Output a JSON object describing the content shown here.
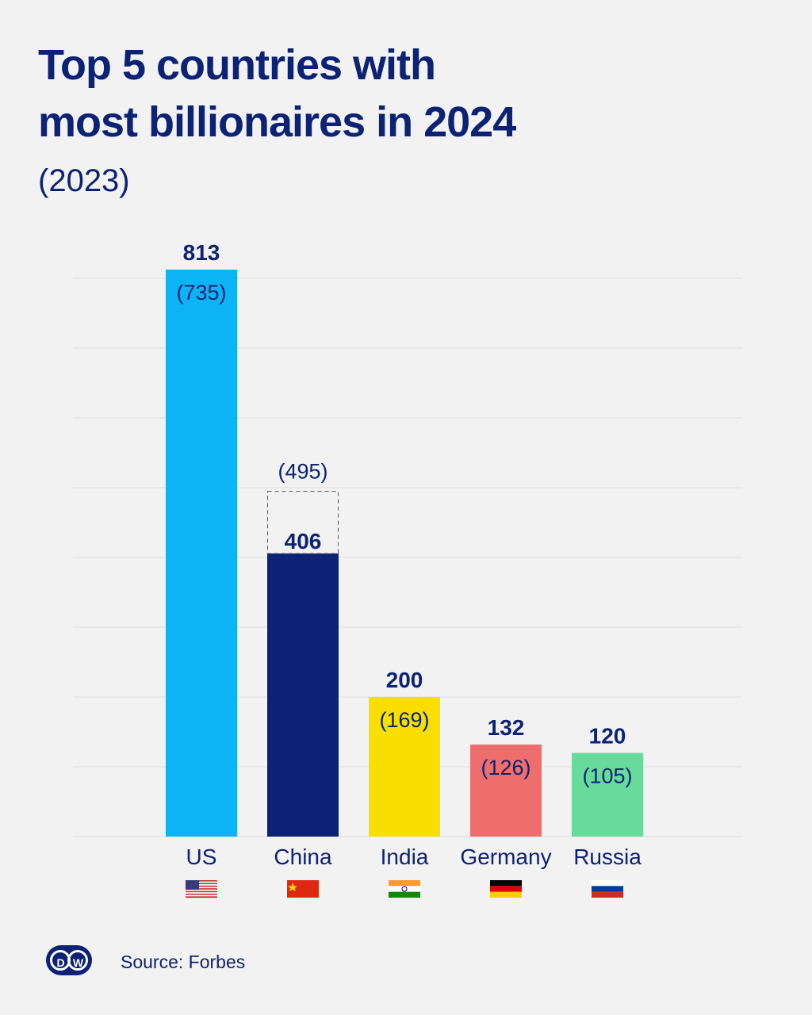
{
  "header": {
    "title_line1": "Top 5 countries with",
    "title_line2": "most billionaires in 2024",
    "subtitle": "(2023)"
  },
  "footer": {
    "logo_d": "D",
    "logo_w": "W",
    "source": "Source: Forbes"
  },
  "chart_data": {
    "type": "bar",
    "title": "Top 5 countries with most billionaires in 2024",
    "subtitle": "(2023)",
    "categories": [
      "US",
      "China",
      "India",
      "Germany",
      "Russia"
    ],
    "series": [
      {
        "name": "2024",
        "values": [
          813,
          406,
          200,
          132,
          120
        ]
      },
      {
        "name": "2023",
        "values": [
          735,
          495,
          169,
          126,
          105
        ]
      }
    ],
    "labels_2024": [
      "813",
      "406",
      "200",
      "132",
      "120"
    ],
    "labels_2023": [
      "(735)",
      "(495)",
      "(169)",
      "(126)",
      "(105)"
    ],
    "colors": [
      "#0db4f5",
      "#0c2274",
      "#f9df00",
      "#ee6e6d",
      "#67dc9a"
    ],
    "label_2023_colors": [
      "#0c2274",
      "#ffffff",
      "#0c2274",
      "#0c2274",
      "#0c2274"
    ],
    "flags": [
      "us-flag",
      "china-flag",
      "india-flag",
      "germany-flag",
      "russia-flag"
    ],
    "xlabel": "",
    "ylabel": "",
    "ylim": [
      0,
      813
    ],
    "grid": true,
    "legend": "none"
  }
}
